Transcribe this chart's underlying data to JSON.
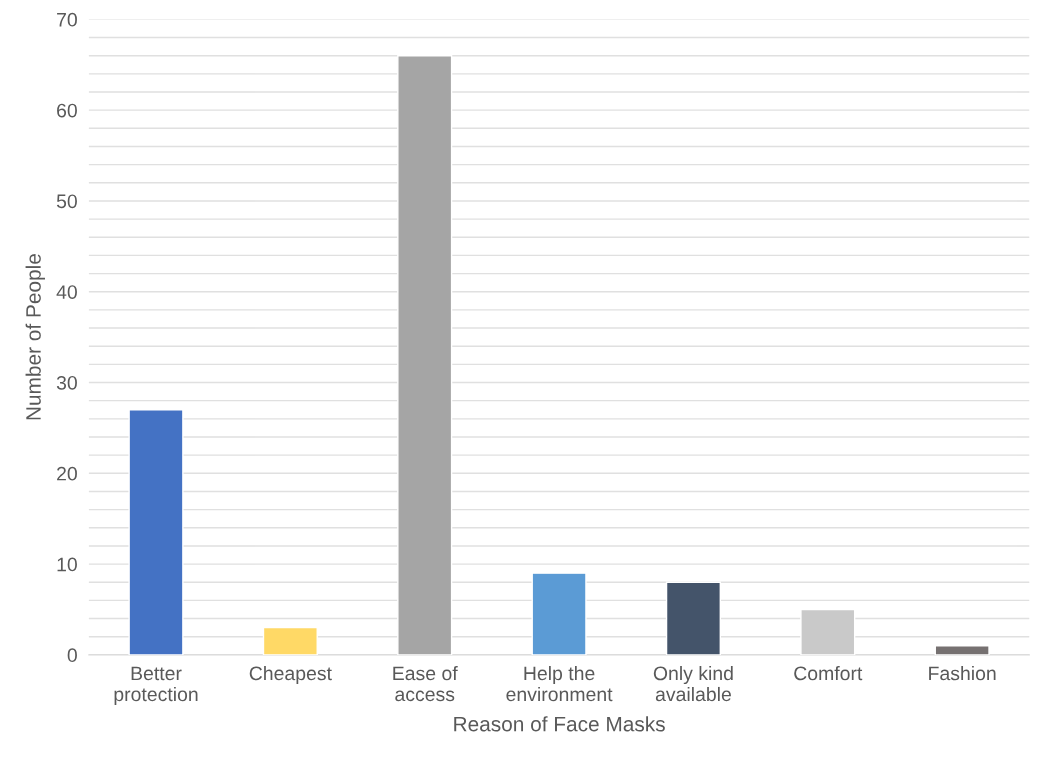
{
  "chart_data": {
    "type": "bar",
    "xlabel": "Reason of Face Masks",
    "ylabel": "Number of People",
    "categories": [
      "Better\nprotection",
      "Cheapest",
      "Ease of\naccess",
      "Help the\nenvironment",
      "Only kind\navailable",
      "Comfort",
      "Fashion"
    ],
    "values": [
      27,
      3,
      66,
      9,
      8,
      5,
      1
    ],
    "colors": [
      "#4472c4",
      "#ffd966",
      "#a5a5a5",
      "#5b9bd5",
      "#44546a",
      "#c9c9c9",
      "#767171"
    ],
    "ylim": [
      0,
      70
    ],
    "yticks": [
      0,
      {
        "value": 2,
        "label": null
      },
      {
        "value": 4,
        "label": null
      },
      {
        "value": 6,
        "label": null
      },
      {
        "value": 8,
        "label": null
      },
      10,
      {
        "value": 12,
        "label": null
      },
      {
        "value": 14,
        "label": null
      },
      {
        "value": 16,
        "label": null
      },
      {
        "value": 18,
        "label": null
      },
      20,
      {
        "value": 22,
        "label": null
      },
      {
        "value": 24,
        "label": null
      },
      {
        "value": 26,
        "label": null
      },
      {
        "value": 28,
        "label": null
      },
      30,
      {
        "value": 32,
        "label": null
      },
      {
        "value": 34,
        "label": null
      },
      {
        "value": 36,
        "label": null
      },
      {
        "value": 38,
        "label": null
      },
      40,
      {
        "value": 42,
        "label": null
      },
      {
        "value": 44,
        "label": null
      },
      {
        "value": 46,
        "label": null
      },
      {
        "value": 48,
        "label": null
      },
      50,
      {
        "value": 52,
        "label": null
      },
      {
        "value": 54,
        "label": null
      },
      {
        "value": 56,
        "label": null
      },
      {
        "value": 58,
        "label": null
      },
      60,
      {
        "value": 62,
        "label": null
      },
      {
        "value": 64,
        "label": null
      },
      {
        "value": 66,
        "label": null
      },
      {
        "value": 68,
        "label": null
      },
      70
    ],
    "grid": "y"
  }
}
